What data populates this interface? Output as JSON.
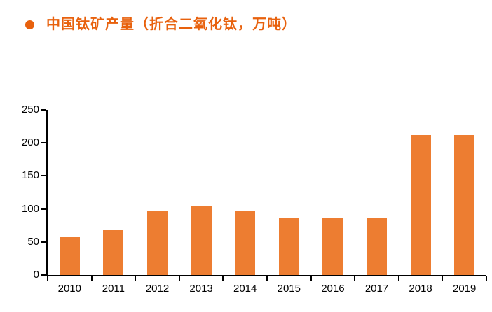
{
  "legend": {
    "bullet_icon": "circle",
    "title": "中国钛矿产量（折合二氧化钛，万吨）"
  },
  "colors": {
    "title_text": "#E8610D",
    "bar": "#ED7D31",
    "axis": "#000000",
    "tick_label": "#000000",
    "background": "#FFFFFF"
  },
  "chart_data": {
    "type": "bar",
    "title": "中国钛矿产量（折合二氧化钛，万吨）",
    "categories": [
      "2010",
      "2011",
      "2012",
      "2013",
      "2014",
      "2015",
      "2016",
      "2017",
      "2018",
      "2019"
    ],
    "values": [
      57,
      68,
      97,
      104,
      97,
      86,
      86,
      86,
      212,
      212
    ],
    "xlabel": "",
    "ylabel": "",
    "ylim": [
      0,
      250
    ],
    "yticks": [
      0,
      50,
      100,
      150,
      200,
      250
    ],
    "grid": false,
    "legend_position": "top-left",
    "bar_color": "#ED7D31"
  }
}
